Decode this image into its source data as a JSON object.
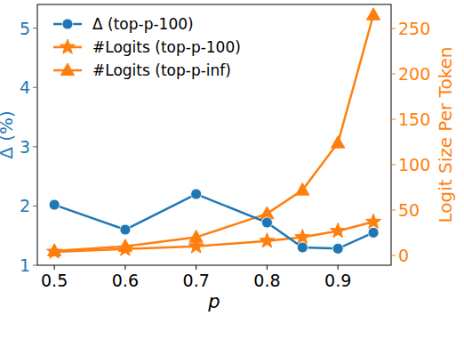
{
  "chart_data": {
    "type": "line",
    "x_label": "p",
    "y_label": "Δ (%)",
    "y2_label": "Logit Size Per Token",
    "x": [
      0.5,
      0.6,
      0.7,
      0.8,
      0.85,
      0.9,
      0.95
    ],
    "xlim": [
      0.476,
      0.975
    ],
    "xticks": [
      0.5,
      0.6,
      0.7,
      0.8,
      0.9
    ],
    "ylim": [
      1,
      5.4
    ],
    "yticks": [
      1,
      2,
      3,
      4,
      5
    ],
    "y2lim": [
      -10.8,
      276.5
    ],
    "y2ticks": [
      0,
      50,
      100,
      150,
      200,
      250
    ],
    "grid": false,
    "legend": "upper left",
    "series": [
      {
        "name": "Δ (top-p-100)",
        "color": "#1f77b4",
        "marker": "circle",
        "line_style": "solid",
        "values": [
          2.02,
          1.6,
          2.2,
          1.72,
          1.3,
          1.28,
          1.55
        ]
      },
      {
        "name": "#Logits (top-p-100)",
        "color": "#ff7f0e",
        "marker": "star",
        "line_style": "solid",
        "axis": "y2",
        "values": [
          4,
          7,
          10,
          16,
          20,
          27,
          37
        ]
      },
      {
        "name": "#Logits (top-p-inf)",
        "color": "#ff7f0e",
        "marker": "triangle",
        "line_style": "solid",
        "axis": "y2",
        "values": [
          5,
          10,
          20,
          46,
          72,
          124,
          265
        ]
      }
    ]
  }
}
